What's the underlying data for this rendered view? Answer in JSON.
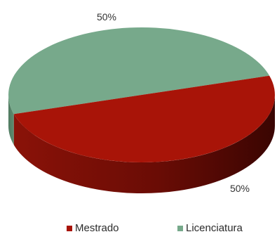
{
  "chart_data": {
    "type": "pie",
    "categories": [
      "Mestrado",
      "Licenciatura"
    ],
    "values": [
      50,
      50
    ],
    "data_labels": [
      "50%",
      "50%"
    ],
    "colors": [
      "#a81408",
      "#77a98b"
    ],
    "legend_position": "bottom",
    "style": "3d"
  }
}
